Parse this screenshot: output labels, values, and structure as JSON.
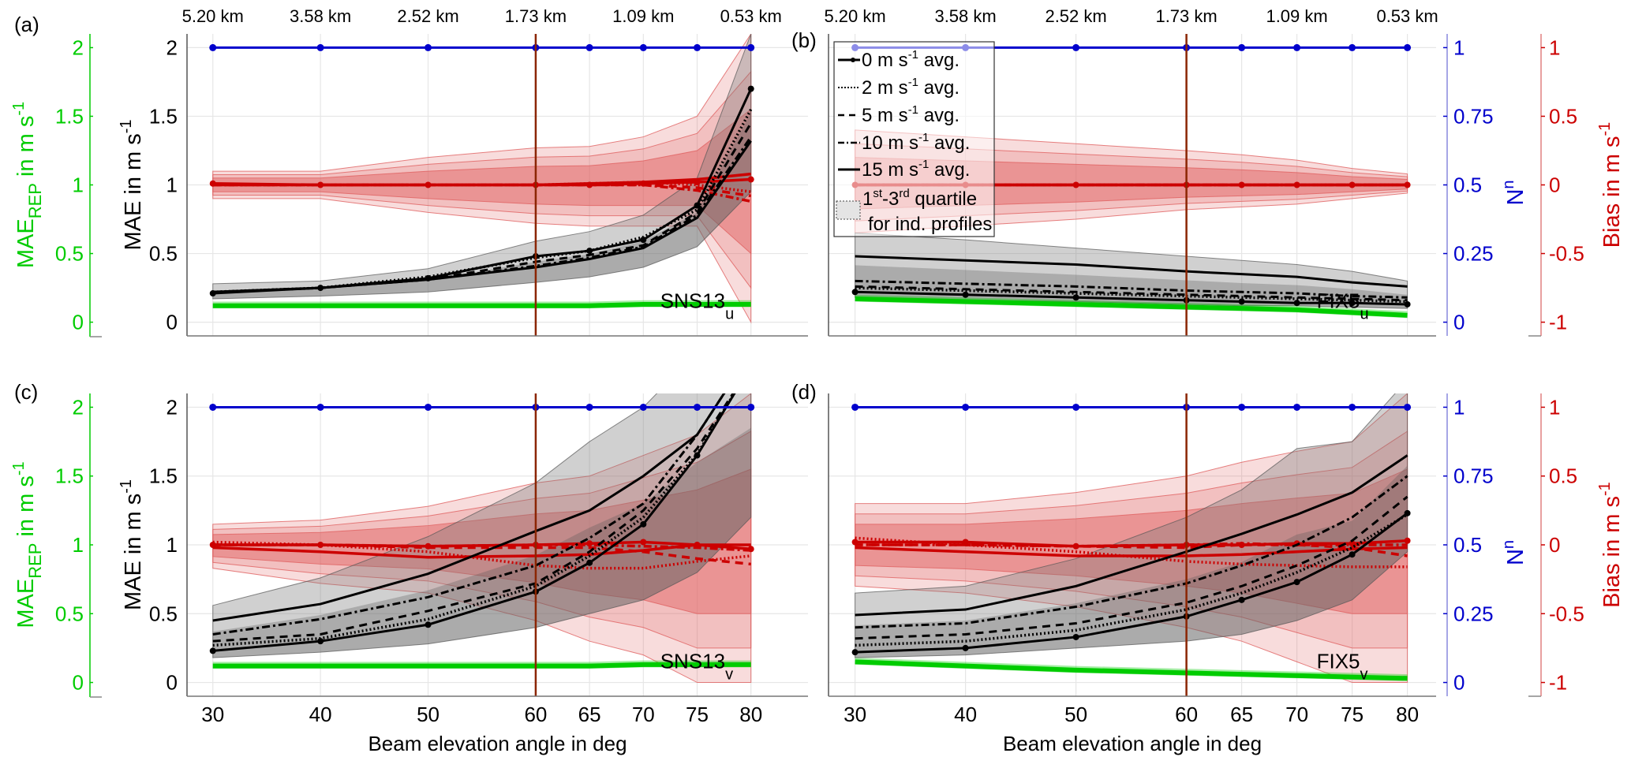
{
  "figure": {
    "top_axis_labels": [
      "5.20 km",
      "3.58 km",
      "2.52 km",
      "1.73 km",
      "1.09 km",
      "0.53 km"
    ],
    "xlabel": "Beam elevation angle in deg",
    "left_ylabel": "MAE in m s",
    "left_ylabel_sup": "-1",
    "rep_ylabel_main": "MAE",
    "rep_ylabel_sub": "REP",
    "rep_ylabel_tail": " in m s",
    "rep_ylabel_sup": "-1",
    "n_ylabel": "N",
    "n_ylabel_sup": "n",
    "bias_ylabel": "Bias in m s",
    "bias_ylabel_sup": "-1",
    "colors": {
      "mae": "#000000",
      "rep": "#00cc00",
      "bias": "#cc0000",
      "n": "#0000cc",
      "bias_band": "#e06060",
      "gray_band": "#888888",
      "vline": "#8b2500"
    },
    "legend": {
      "items": [
        {
          "label": "0 m s",
          "sup": "-1",
          "tail": " avg.",
          "style": "solid-marker"
        },
        {
          "label": "2 m s",
          "sup": "-1",
          "tail": " avg.",
          "style": "dotted"
        },
        {
          "label": "5 m s",
          "sup": "-1",
          "tail": " avg.",
          "style": "dashed"
        },
        {
          "label": "10 m s",
          "sup": "-1",
          "tail": " avg.",
          "style": "dashdot"
        },
        {
          "label": "15 m s",
          "sup": "-1",
          "tail": " avg.",
          "style": "solid"
        }
      ],
      "quartile_line1_a": "1",
      "quartile_line1_sup1": "st",
      "quartile_line1_b": "-3",
      "quartile_line1_sup2": "rd",
      "quartile_line1_c": " quartile",
      "quartile_line2": "for ind. profiles"
    }
  },
  "chart_data": [
    {
      "panel": "(a)",
      "type": "line",
      "annotation": "SNS13",
      "annotation_sub": "u",
      "x": [
        30,
        40,
        50,
        60,
        65,
        70,
        75,
        80
      ],
      "xticks": [
        30,
        40,
        50,
        60,
        65,
        70,
        75,
        80
      ],
      "top_ticks": [
        30,
        40,
        50,
        60,
        70,
        80
      ],
      "xlim": [
        27.6,
        85.3
      ],
      "ylim": [
        -0.1,
        2.1
      ],
      "yticks": [
        0,
        0.5,
        1,
        1.5,
        2
      ],
      "rep_yticks": [
        0,
        0.5,
        1,
        1.5,
        2
      ],
      "vline": 60,
      "mae_series": [
        {
          "name": "0 m s-1 avg.",
          "style": "solid-marker",
          "values": [
            0.21,
            0.25,
            0.32,
            0.48,
            0.52,
            0.6,
            0.85,
            1.7
          ]
        },
        {
          "name": "2 m s-1 avg.",
          "style": "dotted",
          "values": [
            0.22,
            0.25,
            0.33,
            0.47,
            0.52,
            0.62,
            0.82,
            1.55
          ]
        },
        {
          "name": "5 m s-1 avg.",
          "style": "dashed",
          "values": [
            0.22,
            0.25,
            0.31,
            0.44,
            0.49,
            0.56,
            0.8,
            1.45
          ]
        },
        {
          "name": "10 m s-1 avg.",
          "style": "dashdot",
          "values": [
            0.22,
            0.25,
            0.31,
            0.41,
            0.47,
            0.55,
            0.78,
            1.35
          ]
        },
        {
          "name": "15 m s-1 avg.",
          "style": "solid",
          "values": [
            0.22,
            0.25,
            0.31,
            0.4,
            0.46,
            0.54,
            0.76,
            1.32
          ]
        }
      ],
      "mae_band": {
        "lower": [
          0.17,
          0.19,
          0.22,
          0.29,
          0.33,
          0.4,
          0.55,
          0.95
        ],
        "upper": [
          0.28,
          0.3,
          0.39,
          0.59,
          0.66,
          0.78,
          1.05,
          2.1
        ]
      },
      "bias_series": [
        {
          "name": "0 m s-1 avg.",
          "style": "solid-marker",
          "values": [
            0.01,
            0.0,
            0.0,
            0.0,
            0.0,
            0.01,
            0.02,
            0.04
          ]
        },
        {
          "name": "2 m s-1 avg.",
          "style": "dotted",
          "values": [
            0.0,
            0.0,
            0.0,
            0.0,
            0.01,
            0.02,
            0.0,
            -0.05
          ]
        },
        {
          "name": "5 m s-1 avg.",
          "style": "dashed",
          "values": [
            0.0,
            0.0,
            0.0,
            0.0,
            0.0,
            0.0,
            -0.02,
            -0.08
          ]
        },
        {
          "name": "10 m s-1 avg.",
          "style": "dashdot",
          "values": [
            0.0,
            0.0,
            0.0,
            0.0,
            0.0,
            0.0,
            -0.04,
            -0.12
          ]
        },
        {
          "name": "15 m s-1 avg.",
          "style": "solid",
          "values": [
            0.0,
            0.0,
            0.0,
            0.0,
            0.01,
            0.02,
            0.04,
            0.08
          ]
        }
      ],
      "bias_band": {
        "lower": [
          -0.1,
          -0.1,
          -0.2,
          -0.28,
          -0.3,
          -0.3,
          -0.3,
          -1.0
        ],
        "upper": [
          0.1,
          0.1,
          0.2,
          0.27,
          0.28,
          0.35,
          0.5,
          1.1
        ]
      },
      "rep_values": [
        0.12,
        0.12,
        0.12,
        0.12,
        0.12,
        0.13,
        0.13,
        0.13
      ],
      "n_values": [
        1,
        1,
        1,
        1,
        1,
        1,
        1,
        1
      ]
    },
    {
      "panel": "(b)",
      "type": "line",
      "annotation": "FIX5",
      "annotation_sub": "u",
      "x": [
        30,
        40,
        50,
        60,
        65,
        70,
        75,
        80
      ],
      "xticks": [
        30,
        40,
        50,
        60,
        65,
        70,
        75,
        80
      ],
      "top_ticks": [
        30,
        40,
        50,
        60,
        70,
        80
      ],
      "xlim": [
        27.6,
        82.6
      ],
      "ylim": [
        -0.1,
        2.1
      ],
      "n_yticks": [
        0,
        0.25,
        0.5,
        0.75,
        1
      ],
      "bias_yticks": [
        -1,
        -0.5,
        0,
        0.5,
        1
      ],
      "vline": 60,
      "mae_series": [
        {
          "name": "0 m s-1 avg.",
          "style": "solid-marker",
          "values": [
            0.22,
            0.2,
            0.18,
            0.16,
            0.15,
            0.14,
            0.14,
            0.13
          ]
        },
        {
          "name": "2 m s-1 avg.",
          "style": "dotted",
          "values": [
            0.25,
            0.23,
            0.21,
            0.19,
            0.18,
            0.17,
            0.16,
            0.15
          ]
        },
        {
          "name": "5 m s-1 avg.",
          "style": "dashed",
          "values": [
            0.26,
            0.24,
            0.22,
            0.2,
            0.19,
            0.18,
            0.17,
            0.16
          ]
        },
        {
          "name": "10 m s-1 avg.",
          "style": "dashdot",
          "values": [
            0.3,
            0.28,
            0.26,
            0.23,
            0.22,
            0.21,
            0.19,
            0.18
          ]
        },
        {
          "name": "15 m s-1 avg.",
          "style": "solid",
          "values": [
            0.48,
            0.45,
            0.42,
            0.37,
            0.35,
            0.33,
            0.29,
            0.26
          ]
        }
      ],
      "mae_band": {
        "lower": [
          0.18,
          0.16,
          0.15,
          0.13,
          0.12,
          0.12,
          0.11,
          0.1
        ],
        "upper": [
          0.65,
          0.6,
          0.54,
          0.48,
          0.45,
          0.42,
          0.37,
          0.3
        ]
      },
      "bias_series": [
        {
          "name": "0 m s-1 avg.",
          "style": "solid-marker",
          "values": [
            0,
            0,
            0,
            0,
            0,
            0,
            0,
            0
          ]
        },
        {
          "name": "2 m s-1 avg.",
          "style": "dotted",
          "values": [
            0,
            0,
            0,
            0,
            0,
            0,
            0,
            0
          ]
        },
        {
          "name": "5 m s-1 avg.",
          "style": "dashed",
          "values": [
            0,
            0,
            0,
            0,
            0,
            0,
            0,
            0
          ]
        },
        {
          "name": "10 m s-1 avg.",
          "style": "dashdot",
          "values": [
            0,
            0,
            0,
            0,
            0,
            0,
            0,
            0
          ]
        },
        {
          "name": "15 m s-1 avg.",
          "style": "solid",
          "values": [
            0,
            0,
            0,
            0,
            0,
            0,
            0,
            0
          ]
        }
      ],
      "bias_band": {
        "lower": [
          -0.35,
          -0.3,
          -0.25,
          -0.18,
          -0.16,
          -0.14,
          -0.1,
          -0.06
        ],
        "upper": [
          0.4,
          0.35,
          0.3,
          0.25,
          0.22,
          0.18,
          0.12,
          0.08
        ]
      },
      "rep_values": [
        0.17,
        0.15,
        0.13,
        0.11,
        0.1,
        0.09,
        0.07,
        0.05
      ],
      "n_values": [
        1,
        1,
        1,
        1,
        1,
        1,
        1,
        1
      ]
    },
    {
      "panel": "(c)",
      "type": "line",
      "annotation": "SNS13",
      "annotation_sub": "v",
      "x": [
        30,
        40,
        50,
        60,
        65,
        70,
        75,
        80
      ],
      "xticks": [
        30,
        40,
        50,
        60,
        65,
        70,
        75,
        80
      ],
      "xlim": [
        27.6,
        85.3
      ],
      "ylim": [
        -0.1,
        2.1
      ],
      "yticks": [
        0,
        0.5,
        1,
        1.5,
        2
      ],
      "rep_yticks": [
        0,
        0.5,
        1,
        1.5,
        2
      ],
      "vline": 60,
      "mae_series": [
        {
          "name": "0 m s-1 avg.",
          "style": "solid-marker",
          "values": [
            0.23,
            0.3,
            0.42,
            0.66,
            0.87,
            1.15,
            1.65,
            2.3
          ]
        },
        {
          "name": "2 m s-1 avg.",
          "style": "dotted",
          "values": [
            0.27,
            0.32,
            0.46,
            0.7,
            0.92,
            1.2,
            1.66,
            2.3
          ]
        },
        {
          "name": "5 m s-1 avg.",
          "style": "dashed",
          "values": [
            0.3,
            0.35,
            0.52,
            0.72,
            0.95,
            1.25,
            1.7,
            2.3
          ]
        },
        {
          "name": "10 m s-1 avg.",
          "style": "dashdot",
          "values": [
            0.35,
            0.46,
            0.62,
            0.85,
            1.05,
            1.3,
            1.8,
            2.4
          ]
        },
        {
          "name": "15 m s-1 avg.",
          "style": "solid",
          "values": [
            0.45,
            0.57,
            0.79,
            1.1,
            1.25,
            1.5,
            1.8,
            2.4
          ]
        }
      ],
      "mae_band": {
        "lower": [
          0.18,
          0.22,
          0.28,
          0.4,
          0.5,
          0.6,
          0.8,
          1.2
        ],
        "upper": [
          0.56,
          0.76,
          1.06,
          1.45,
          1.75,
          2.0,
          2.4,
          2.5
        ]
      },
      "bias_series": [
        {
          "name": "0 m s-1 avg.",
          "style": "solid-marker",
          "values": [
            0.0,
            0.0,
            -0.01,
            0.0,
            0.01,
            0.02,
            0.0,
            -0.03
          ]
        },
        {
          "name": "2 m s-1 avg.",
          "style": "dotted",
          "values": [
            0.02,
            0.0,
            -0.05,
            -0.15,
            -0.17,
            -0.17,
            -0.12,
            -0.08
          ]
        },
        {
          "name": "5 m s-1 avg.",
          "style": "dashed",
          "values": [
            0.0,
            0.0,
            -0.02,
            -0.02,
            -0.02,
            -0.05,
            -0.1,
            -0.14
          ]
        },
        {
          "name": "10 m s-1 avg.",
          "style": "dashdot",
          "values": [
            0.0,
            0.0,
            -0.01,
            0.0,
            0.0,
            -0.01,
            -0.02,
            -0.04
          ]
        },
        {
          "name": "15 m s-1 avg.",
          "style": "solid",
          "values": [
            -0.02,
            -0.05,
            -0.09,
            -0.08,
            -0.07,
            -0.04,
            0.0,
            0.0
          ]
        }
      ],
      "bias_band": {
        "lower": [
          -0.17,
          -0.28,
          -0.35,
          -0.55,
          -0.7,
          -0.8,
          -1.0,
          -1.0
        ],
        "upper": [
          0.15,
          0.18,
          0.28,
          0.45,
          0.5,
          0.65,
          0.8,
          1.1
        ]
      },
      "rep_values": [
        0.12,
        0.12,
        0.12,
        0.12,
        0.12,
        0.13,
        0.13,
        0.13
      ],
      "n_values": [
        1,
        1,
        1,
        1,
        1,
        1,
        1,
        1
      ]
    },
    {
      "panel": "(d)",
      "type": "line",
      "annotation": "FIX5",
      "annotation_sub": "v",
      "x": [
        30,
        40,
        50,
        60,
        65,
        70,
        75,
        80
      ],
      "xticks": [
        30,
        40,
        50,
        60,
        65,
        70,
        75,
        80
      ],
      "xlim": [
        27.6,
        82.6
      ],
      "ylim": [
        -0.1,
        2.1
      ],
      "n_yticks": [
        0,
        0.25,
        0.5,
        0.75,
        1
      ],
      "bias_yticks": [
        -1,
        -0.5,
        0,
        0.5,
        1
      ],
      "vline": 60,
      "mae_series": [
        {
          "name": "0 m s-1 avg.",
          "style": "solid-marker",
          "values": [
            0.22,
            0.25,
            0.33,
            0.48,
            0.6,
            0.73,
            0.93,
            1.23
          ]
        },
        {
          "name": "2 m s-1 avg.",
          "style": "dotted",
          "values": [
            0.27,
            0.3,
            0.38,
            0.53,
            0.65,
            0.8,
            0.98,
            1.22
          ]
        },
        {
          "name": "5 m s-1 avg.",
          "style": "dashed",
          "values": [
            0.32,
            0.35,
            0.43,
            0.58,
            0.7,
            0.85,
            1.03,
            1.35
          ]
        },
        {
          "name": "10 m s-1 avg.",
          "style": "dashdot",
          "values": [
            0.4,
            0.43,
            0.55,
            0.72,
            0.85,
            1.0,
            1.2,
            1.5
          ]
        },
        {
          "name": "15 m s-1 avg.",
          "style": "solid",
          "values": [
            0.49,
            0.53,
            0.7,
            0.95,
            1.08,
            1.22,
            1.38,
            1.65
          ]
        }
      ],
      "mae_band": {
        "lower": [
          0.18,
          0.2,
          0.25,
          0.3,
          0.35,
          0.45,
          0.6,
          0.95
        ],
        "upper": [
          0.65,
          0.7,
          0.9,
          1.2,
          1.4,
          1.7,
          1.75,
          2.2
        ]
      },
      "bias_series": [
        {
          "name": "0 m s-1 avg.",
          "style": "solid-marker",
          "values": [
            0.02,
            0.02,
            -0.01,
            0.0,
            0.0,
            0.01,
            0.01,
            0.03
          ]
        },
        {
          "name": "2 m s-1 avg.",
          "style": "dotted",
          "values": [
            0.05,
            0.0,
            -0.05,
            -0.12,
            -0.14,
            -0.15,
            -0.16,
            -0.16
          ]
        },
        {
          "name": "5 m s-1 avg.",
          "style": "dashed",
          "values": [
            0.0,
            0.0,
            -0.01,
            -0.02,
            0.0,
            0.0,
            -0.02,
            -0.08
          ]
        },
        {
          "name": "10 m s-1 avg.",
          "style": "dashdot",
          "values": [
            0.0,
            0.0,
            -0.01,
            0.0,
            0.01,
            0.0,
            0.0,
            0.0
          ]
        },
        {
          "name": "15 m s-1 avg.",
          "style": "solid",
          "values": [
            -0.02,
            -0.05,
            -0.08,
            -0.08,
            -0.07,
            -0.05,
            -0.03,
            -0.02
          ]
        }
      ],
      "bias_band": {
        "lower": [
          -0.3,
          -0.35,
          -0.45,
          -0.6,
          -0.7,
          -0.85,
          -1.0,
          -1.0
        ],
        "upper": [
          0.3,
          0.3,
          0.38,
          0.5,
          0.6,
          0.68,
          0.75,
          1.1
        ]
      },
      "rep_values": [
        0.15,
        0.12,
        0.09,
        0.07,
        0.06,
        0.05,
        0.04,
        0.03
      ],
      "n_values": [
        1,
        1,
        1,
        1,
        1,
        1,
        1,
        1
      ]
    }
  ]
}
